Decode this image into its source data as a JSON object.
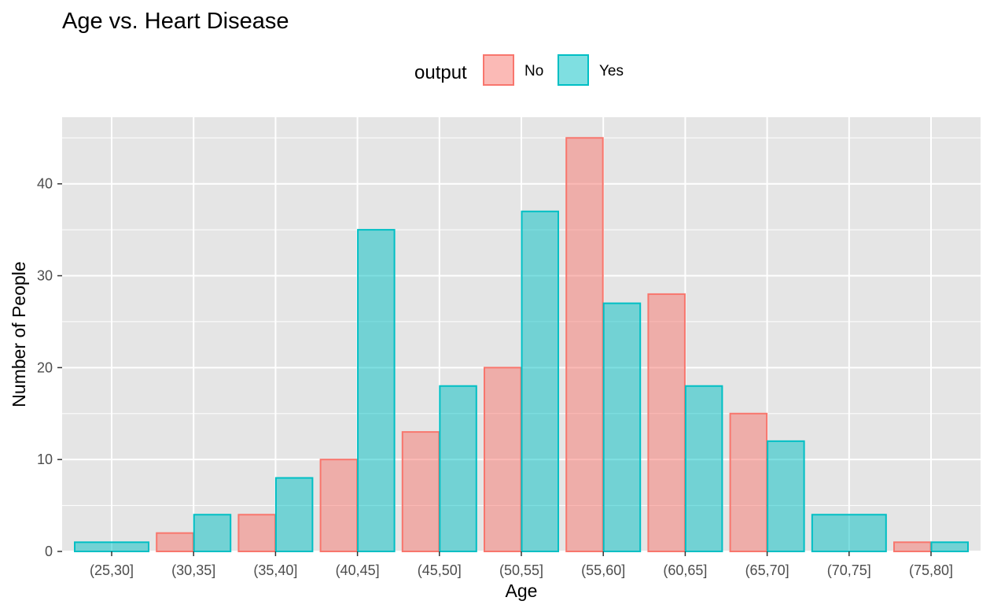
{
  "chart_data": {
    "type": "bar",
    "title": "Age vs. Heart Disease",
    "xlabel": "Age",
    "ylabel": "Number of People",
    "categories": [
      "(25,30]",
      "(30,35]",
      "(35,40]",
      "(40,45]",
      "(45,50]",
      "(50,55]",
      "(55,60]",
      "(60,65]",
      "(65,70]",
      "(70,75]",
      "(75,80]"
    ],
    "series": [
      {
        "name": "No",
        "fill": "#F8766D",
        "values": [
          0,
          2,
          4,
          10,
          13,
          20,
          45,
          28,
          15,
          0,
          1
        ]
      },
      {
        "name": "Yes",
        "fill": "#00BFC4",
        "values": [
          1,
          4,
          8,
          35,
          18,
          37,
          27,
          18,
          12,
          4,
          1
        ]
      }
    ],
    "legend_title": "output",
    "legend_position": "top",
    "ylim": [
      0,
      47.25
    ],
    "yticks": [
      0,
      10,
      20,
      30,
      40
    ],
    "grid": true,
    "panel_background": "#E5E5E5",
    "grid_color": "#FFFFFF",
    "bar_opacity": 0.5
  }
}
